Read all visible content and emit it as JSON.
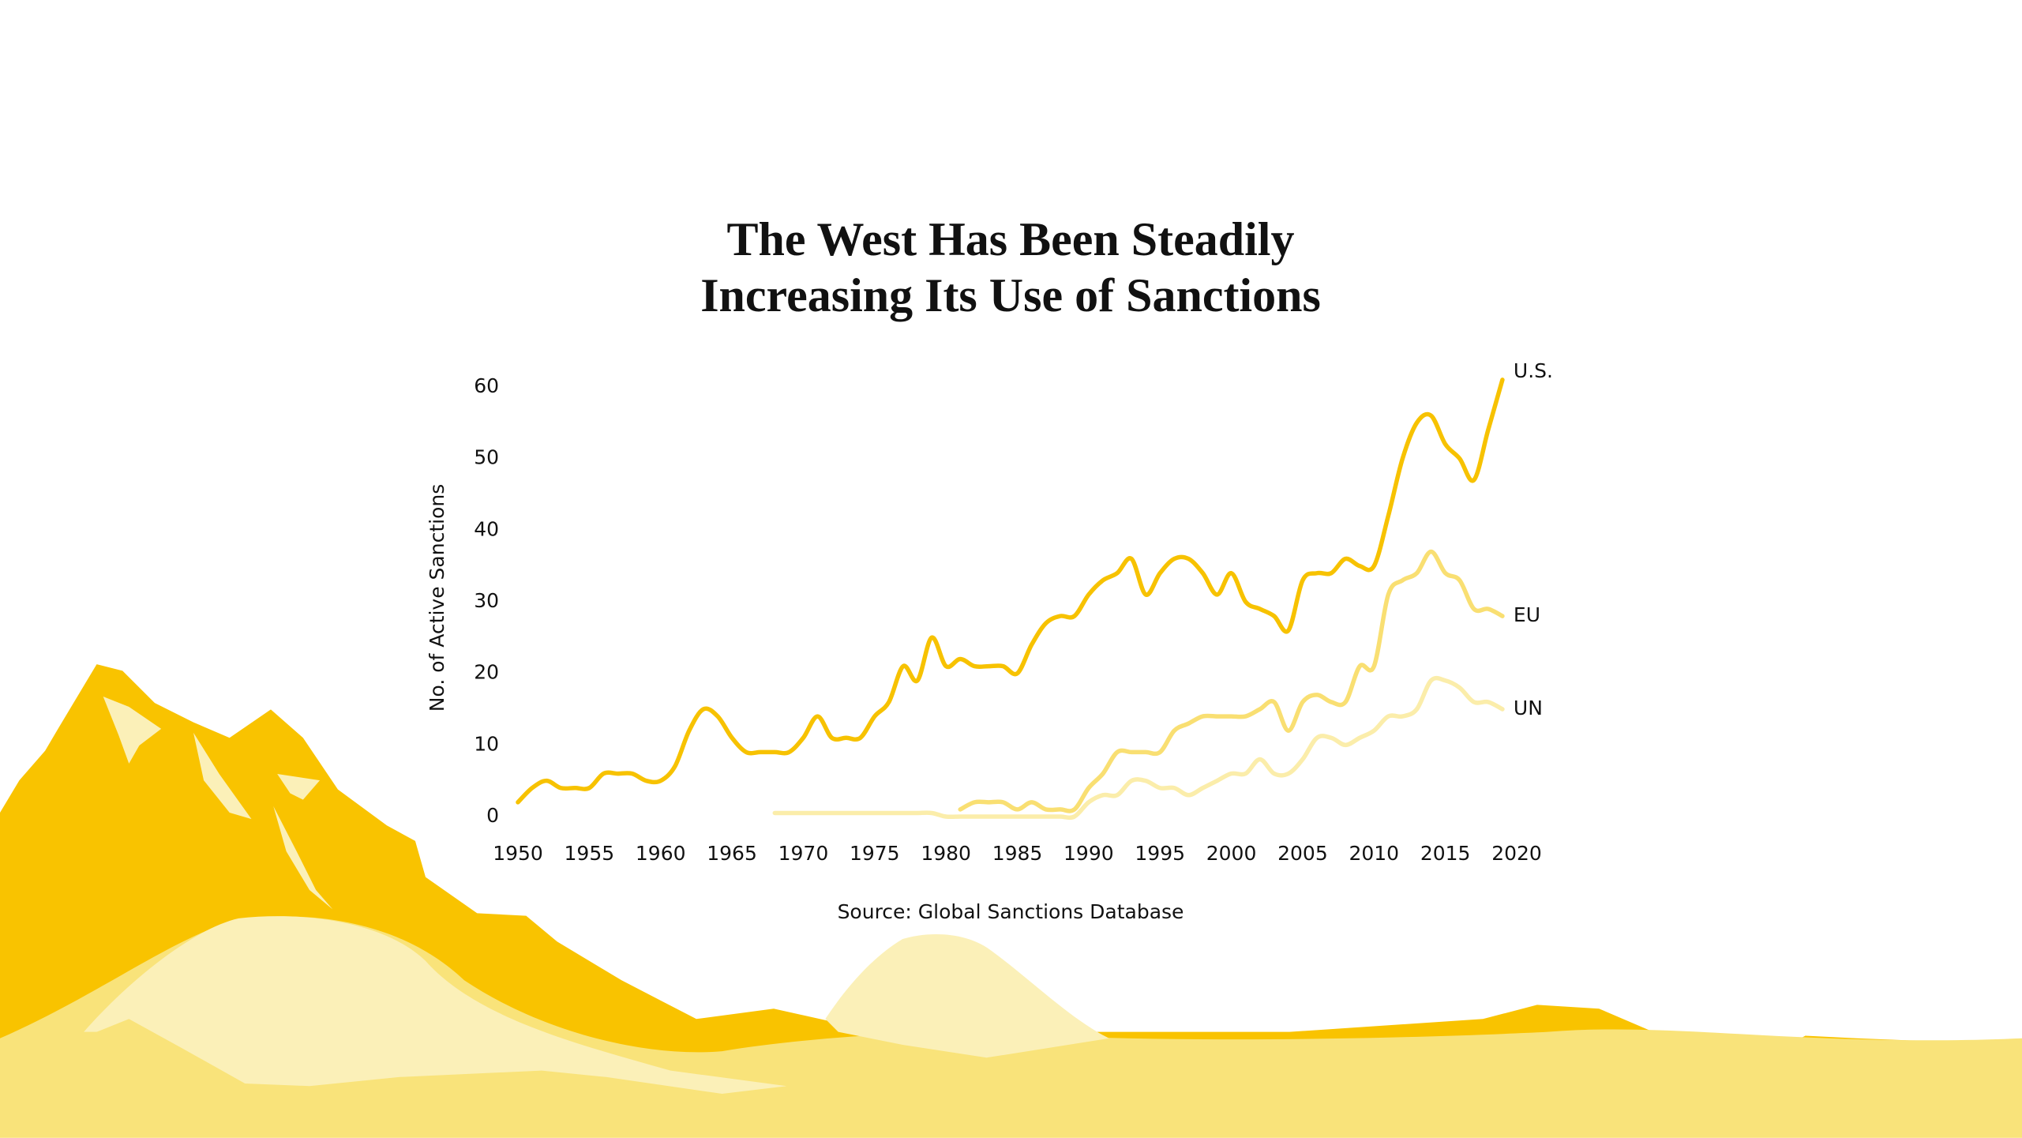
{
  "chart_data": {
    "type": "line",
    "title": [
      "The West Has Been Steadily",
      "Increasing Its Use of Sanctions"
    ],
    "y_label": "No. of Active Sanctions",
    "source": "Source:  Global Sanctions Database",
    "x": [
      1950,
      1951,
      1952,
      1953,
      1954,
      1955,
      1956,
      1957,
      1958,
      1959,
      1960,
      1961,
      1962,
      1963,
      1964,
      1965,
      1966,
      1967,
      1968,
      1969,
      1970,
      1971,
      1972,
      1973,
      1974,
      1975,
      1976,
      1977,
      1978,
      1979,
      1980,
      1981,
      1982,
      1983,
      1984,
      1985,
      1986,
      1987,
      1988,
      1989,
      1990,
      1991,
      1992,
      1993,
      1994,
      1995,
      1996,
      1997,
      1998,
      1999,
      2000,
      2001,
      2002,
      2003,
      2004,
      2005,
      2006,
      2007,
      2008,
      2009,
      2010,
      2011,
      2012,
      2013,
      2014,
      2015,
      2016,
      2017,
      2018,
      2019
    ],
    "series": [
      {
        "name": "U.S.",
        "color": "#f7c200",
        "values": [
          2,
          4,
          5,
          4,
          4,
          4,
          6,
          6,
          6,
          5,
          5,
          7,
          12,
          15,
          14,
          11,
          9,
          9,
          9,
          9,
          11,
          14,
          11,
          11,
          11,
          14,
          16,
          21,
          19,
          25,
          21,
          22,
          21,
          21,
          21,
          20,
          24,
          27,
          28,
          28,
          31,
          33,
          34,
          36,
          31,
          34,
          36,
          36,
          34,
          31,
          34,
          30,
          29,
          28,
          26,
          33,
          34,
          34,
          36,
          35,
          35,
          42,
          50,
          55,
          56,
          52,
          50,
          47,
          54,
          61
        ]
      },
      {
        "name": "EU",
        "color": "#f9df72",
        "values": [
          null,
          null,
          null,
          null,
          null,
          null,
          null,
          null,
          null,
          null,
          null,
          null,
          null,
          null,
          null,
          null,
          null,
          null,
          null,
          null,
          null,
          null,
          null,
          null,
          null,
          null,
          null,
          null,
          null,
          null,
          null,
          1,
          2,
          2,
          2,
          1,
          2,
          1,
          1,
          1,
          4,
          6,
          9,
          9,
          9,
          9,
          12,
          13,
          14,
          14,
          14,
          14,
          15,
          16,
          12,
          16,
          17,
          16,
          16,
          21,
          21,
          31,
          33,
          34,
          37,
          34,
          33,
          29,
          29,
          28
        ]
      },
      {
        "name": "UN",
        "color": "#fbedaa",
        "values": [
          null,
          null,
          null,
          null,
          null,
          null,
          null,
          null,
          null,
          null,
          null,
          null,
          null,
          null,
          null,
          null,
          null,
          null,
          0.5,
          0.5,
          0.5,
          0.5,
          0.5,
          0.5,
          0.5,
          0.5,
          0.5,
          0.5,
          0.5,
          0.5,
          0,
          0,
          0,
          0,
          0,
          0,
          0,
          0,
          0,
          0,
          2,
          3,
          3,
          5,
          5,
          4,
          4,
          3,
          4,
          5,
          6,
          6,
          8,
          6,
          6,
          8,
          11,
          11,
          10,
          11,
          12,
          14,
          14,
          15,
          19,
          19,
          18,
          16,
          16,
          15
        ]
      }
    ],
    "xlim": [
      1950,
      2020
    ],
    "xticks": [
      1950,
      1955,
      1960,
      1965,
      1970,
      1975,
      1980,
      1985,
      1990,
      1995,
      2000,
      2005,
      2010,
      2015,
      2020
    ],
    "ylim": [
      0,
      60
    ],
    "yticks": [
      0,
      10,
      20,
      30,
      40,
      50,
      60
    ],
    "grid": false
  }
}
